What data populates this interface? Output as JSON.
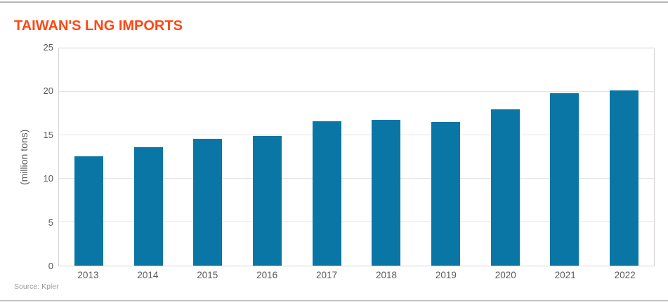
{
  "page": {
    "title": "TAIWAN'S LNG IMPORTS",
    "source": "Source: Kpler"
  },
  "chart_data": {
    "type": "bar",
    "title": "TAIWAN'S LNG IMPORTS",
    "categories": [
      "2013",
      "2014",
      "2015",
      "2016",
      "2017",
      "2018",
      "2019",
      "2020",
      "2021",
      "2022"
    ],
    "values": [
      12.6,
      13.6,
      14.6,
      14.9,
      16.6,
      16.8,
      16.5,
      18.0,
      19.8,
      20.2
    ],
    "xlabel": "",
    "ylabel": "(million tons)",
    "ylim": [
      0,
      25
    ],
    "yticks": [
      0,
      5,
      10,
      15,
      20,
      25
    ],
    "grid": true,
    "legend": "none",
    "source": "Source: Kpler"
  },
  "colors": {
    "title": "#ff4713",
    "bar": "#0a76a6",
    "axis_text": "#595959",
    "gridline": "#e4e4e4",
    "plot_border": "#d4d4d4",
    "page_divider": "#b7b7b7",
    "source_text": "#9c9c9c"
  }
}
